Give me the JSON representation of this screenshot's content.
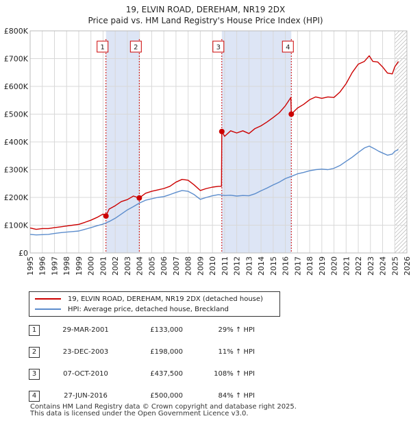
{
  "chart_data": {
    "type": "line",
    "title": "19, ELVIN ROAD, DEREHAM, NR19 2DX",
    "subtitle": "Price paid vs. HM Land Registry's House Price Index (HPI)",
    "xlabel": "",
    "ylabel": "",
    "xlim": [
      1995,
      2026
    ],
    "ylim": [
      0,
      800000
    ],
    "y_ticks": [
      0,
      100000,
      200000,
      300000,
      400000,
      500000,
      600000,
      700000,
      800000
    ],
    "y_tick_labels": [
      "£0",
      "£100K",
      "£200K",
      "£300K",
      "£400K",
      "£500K",
      "£600K",
      "£700K",
      "£800K"
    ],
    "x_ticks": [
      1995,
      1996,
      1997,
      1998,
      1999,
      2000,
      2001,
      2002,
      2003,
      2004,
      2005,
      2006,
      2007,
      2008,
      2009,
      2010,
      2011,
      2012,
      2013,
      2014,
      2015,
      2016,
      2017,
      2018,
      2019,
      2020,
      2021,
      2022,
      2023,
      2024,
      2025,
      2026
    ],
    "x_tick_labels": [
      "1995",
      "1996",
      "1997",
      "1998",
      "1999",
      "2000",
      "2001",
      "2002",
      "2003",
      "2004",
      "2005",
      "2006",
      "2007",
      "2008",
      "2009",
      "2010",
      "2011",
      "2012",
      "2013",
      "2014",
      "2015",
      "2016",
      "2017",
      "2018",
      "2019",
      "2020",
      "2021",
      "2022",
      "2023",
      "2024",
      "2025",
      "2026"
    ],
    "grid": true,
    "shaded_periods": [
      [
        2001.24,
        2003.98
      ],
      [
        2010.77,
        2016.49
      ]
    ],
    "forecast_start": 2025.0,
    "series": [
      {
        "name": "19, ELVIN ROAD, DEREHAM, NR19 2DX (detached house)",
        "color": "#cc0000",
        "x": [
          1995.0,
          1995.5,
          1996.0,
          1996.5,
          1997.0,
          1997.5,
          1998.0,
          1998.5,
          1999.0,
          1999.5,
          2000.0,
          2000.5,
          2001.0,
          2001.24,
          2001.5,
          2002.0,
          2002.5,
          2003.0,
          2003.5,
          2003.98,
          2004.5,
          2005.0,
          2005.5,
          2006.0,
          2006.5,
          2007.0,
          2007.5,
          2008.0,
          2008.5,
          2009.0,
          2009.5,
          2010.0,
          2010.5,
          2010.74,
          2010.77,
          2011.0,
          2011.5,
          2012.0,
          2012.5,
          2013.0,
          2013.5,
          2014.0,
          2014.5,
          2015.0,
          2015.5,
          2016.0,
          2016.45,
          2016.49,
          2017.0,
          2017.5,
          2018.0,
          2018.5,
          2019.0,
          2019.5,
          2020.0,
          2020.5,
          2021.0,
          2021.5,
          2022.0,
          2022.5,
          2022.9,
          2023.2,
          2023.6,
          2024.0,
          2024.4,
          2024.8,
          2025.0,
          2025.3
        ],
        "values": [
          90000,
          85000,
          88000,
          88000,
          91000,
          94000,
          97000,
          100000,
          103000,
          110000,
          118000,
          128000,
          140000,
          133000,
          158000,
          170000,
          185000,
          192000,
          205000,
          198000,
          215000,
          222000,
          227000,
          232000,
          240000,
          255000,
          265000,
          262000,
          245000,
          225000,
          232000,
          237000,
          240000,
          240000,
          437500,
          420000,
          440000,
          432000,
          440000,
          430000,
          448000,
          458000,
          472000,
          488000,
          505000,
          530000,
          560000,
          500000,
          522000,
          535000,
          552000,
          562000,
          557000,
          562000,
          560000,
          580000,
          610000,
          650000,
          680000,
          690000,
          710000,
          690000,
          688000,
          670000,
          648000,
          645000,
          670000,
          690000
        ]
      },
      {
        "name": "HPI: Average price, detached house, Breckland",
        "color": "#5b8ccc",
        "x": [
          1995.0,
          1995.5,
          1996.0,
          1996.5,
          1997.0,
          1997.5,
          1998.0,
          1998.5,
          1999.0,
          1999.5,
          2000.0,
          2000.5,
          2001.0,
          2001.5,
          2002.0,
          2002.5,
          2003.0,
          2003.5,
          2004.0,
          2004.5,
          2005.0,
          2005.5,
          2006.0,
          2006.5,
          2007.0,
          2007.5,
          2008.0,
          2008.5,
          2009.0,
          2009.5,
          2010.0,
          2010.5,
          2011.0,
          2011.5,
          2012.0,
          2012.5,
          2013.0,
          2013.5,
          2014.0,
          2014.5,
          2015.0,
          2015.5,
          2016.0,
          2016.5,
          2017.0,
          2017.5,
          2018.0,
          2018.5,
          2019.0,
          2019.5,
          2020.0,
          2020.5,
          2021.0,
          2021.5,
          2022.0,
          2022.5,
          2022.9,
          2023.3,
          2023.7,
          2024.0,
          2024.4,
          2024.8,
          2025.0,
          2025.3
        ],
        "values": [
          67000,
          65000,
          66000,
          67000,
          70000,
          73000,
          75000,
          77000,
          79000,
          85000,
          91000,
          98000,
          104000,
          113000,
          125000,
          140000,
          155000,
          167000,
          180000,
          190000,
          195000,
          200000,
          203000,
          210000,
          218000,
          225000,
          222000,
          210000,
          193000,
          200000,
          206000,
          210000,
          207000,
          208000,
          205000,
          207000,
          206000,
          213000,
          224000,
          234000,
          245000,
          255000,
          268000,
          276000,
          285000,
          290000,
          296000,
          300000,
          302000,
          300000,
          305000,
          315000,
          330000,
          345000,
          362000,
          378000,
          385000,
          376000,
          366000,
          360000,
          352000,
          356000,
          366000,
          372000
        ]
      }
    ],
    "sales": [
      {
        "label": "1",
        "x": 2001.24,
        "value": 133000
      },
      {
        "label": "2",
        "x": 2003.98,
        "value": 198000
      },
      {
        "label": "3",
        "x": 2010.77,
        "value": 437500
      },
      {
        "label": "4",
        "x": 2016.49,
        "value": 500000
      }
    ]
  },
  "legend": {
    "property_label": "19, ELVIN ROAD, DEREHAM, NR19 2DX (detached house)",
    "hpi_label": "HPI: Average price, detached house, Breckland"
  },
  "transactions": [
    {
      "num": "1",
      "date": "29-MAR-2001",
      "price": "£133,000",
      "hpi": "29% ↑ HPI"
    },
    {
      "num": "2",
      "date": "23-DEC-2003",
      "price": "£198,000",
      "hpi": "11% ↑ HPI"
    },
    {
      "num": "3",
      "date": "07-OCT-2010",
      "price": "£437,500",
      "hpi": "108% ↑ HPI"
    },
    {
      "num": "4",
      "date": "27-JUN-2016",
      "price": "£500,000",
      "hpi": "84% ↑ HPI"
    }
  ],
  "footer": {
    "line1": "Contains HM Land Registry data © Crown copyright and database right 2025.",
    "line2": "This data is licensed under the Open Government Licence v3.0."
  }
}
